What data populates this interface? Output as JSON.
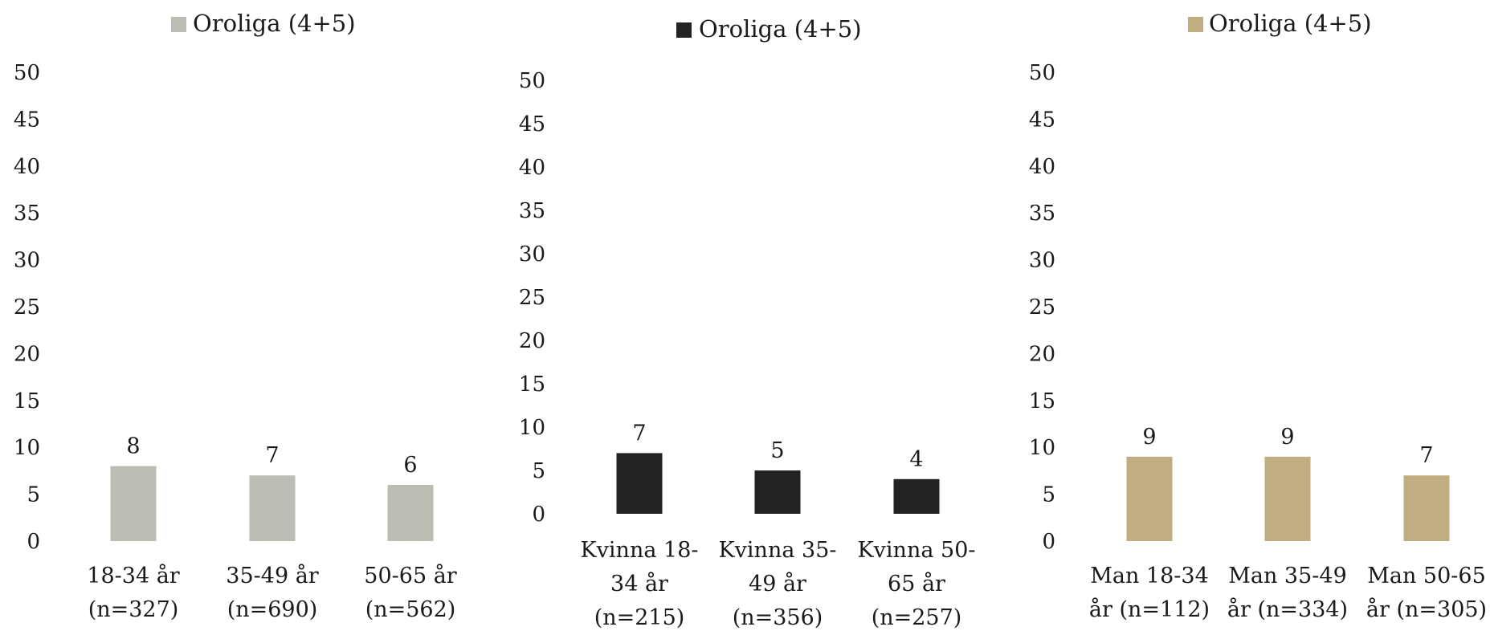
{
  "chart_data": [
    {
      "type": "bar",
      "title": "",
      "xlabel": "",
      "ylabel": "",
      "ylim": [
        0,
        50
      ],
      "yticks": [
        "0",
        "5",
        "10",
        "15",
        "20",
        "25",
        "30",
        "35",
        "40",
        "45",
        "50"
      ],
      "legend_position": "top",
      "grid": false,
      "categories": [
        [
          "18-34 år",
          "(n=327)"
        ],
        [
          "35-49 år",
          "(n=690)"
        ],
        [
          "50-65 år",
          "(n=562)"
        ]
      ],
      "series": [
        {
          "name": "Oroliga (4+5)",
          "color": "#bdbcb2",
          "values": [
            8,
            7,
            6
          ]
        }
      ]
    },
    {
      "type": "bar",
      "title": "",
      "xlabel": "",
      "ylabel": "",
      "ylim": [
        0,
        50
      ],
      "yticks": [
        "0",
        "5",
        "10",
        "15",
        "20",
        "25",
        "30",
        "35",
        "40",
        "45",
        "50"
      ],
      "legend_position": "top",
      "grid": false,
      "categories": [
        [
          "Kvinna 18-",
          "34 år",
          "(n=215)"
        ],
        [
          "Kvinna 35-",
          "49 år",
          "(n=356)"
        ],
        [
          "Kvinna 50-",
          "65 år",
          "(n=257)"
        ]
      ],
      "series": [
        {
          "name": "Oroliga (4+5)",
          "color": "#222222",
          "values": [
            7,
            5,
            4
          ]
        }
      ]
    },
    {
      "type": "bar",
      "title": "",
      "xlabel": "",
      "ylabel": "",
      "ylim": [
        0,
        50
      ],
      "yticks": [
        "0",
        "5",
        "10",
        "15",
        "20",
        "25",
        "30",
        "35",
        "40",
        "45",
        "50"
      ],
      "legend_position": "top",
      "grid": false,
      "categories": [
        [
          "Man 18-34",
          "år (n=112)"
        ],
        [
          "Man 35-49",
          "år (n=334)"
        ],
        [
          "Man 50-65",
          "år (n=305)"
        ]
      ],
      "series": [
        {
          "name": "Oroliga (4+5)",
          "color": "#c1ad82",
          "values": [
            9,
            9,
            7
          ]
        }
      ]
    }
  ]
}
